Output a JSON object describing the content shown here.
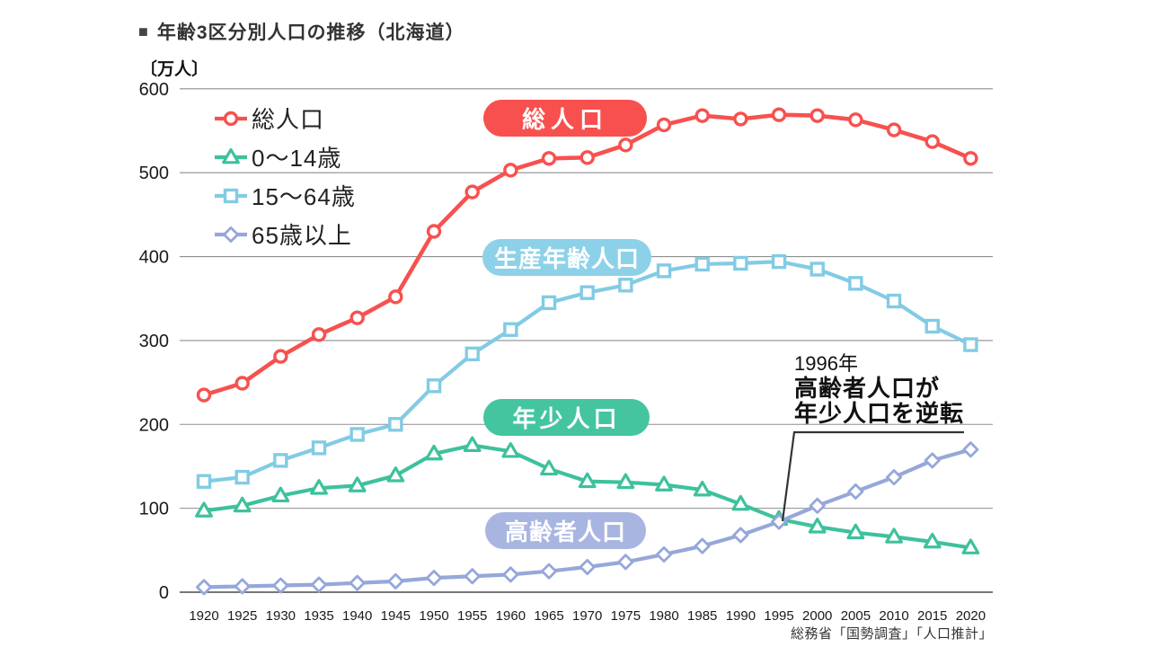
{
  "page": {
    "title_bullet": "■",
    "title": "年齢3区分別人口の推移（北海道）",
    "unit_label": "〔万人〕",
    "source": "総務省「国勢調査」「人口推計」"
  },
  "annotation": {
    "line1": "1996年",
    "line2": "高齢者人口が",
    "line3": "年少人口を逆転",
    "target_year": 1996,
    "line_color": "#333333"
  },
  "badges": [
    {
      "id": "total",
      "label": "総人口",
      "color": "#F8504E"
    },
    {
      "id": "working",
      "label": "生産年齢人口",
      "color": "#8DD1E8"
    },
    {
      "id": "young",
      "label": "年少人口",
      "color": "#44C5A0"
    },
    {
      "id": "elderly",
      "label": "高齢者人口",
      "color": "#A9B5E1"
    }
  ],
  "chart_data": {
    "type": "line",
    "title": "年齢3区分別人口の推移（北海道）",
    "xlabel": "",
    "ylabel": "万人",
    "ylim": [
      0,
      600
    ],
    "yticks": [
      0,
      100,
      200,
      300,
      400,
      500,
      600
    ],
    "grid": "horizontal",
    "legend_position": "top-left",
    "x": [
      1920,
      1925,
      1930,
      1935,
      1940,
      1945,
      1950,
      1955,
      1960,
      1965,
      1970,
      1975,
      1980,
      1985,
      1990,
      1995,
      2000,
      2005,
      2010,
      2015,
      2020
    ],
    "series": [
      {
        "name": "総人口",
        "marker": "circle",
        "color": "#F7514F",
        "values": [
          235,
          249,
          281,
          307,
          327,
          352,
          430,
          477,
          503,
          517,
          518,
          533,
          557,
          568,
          564,
          569,
          568,
          563,
          551,
          537,
          517
        ]
      },
      {
        "name": "0〜14歳",
        "marker": "triangle",
        "color": "#3EC19D",
        "values": [
          97,
          103,
          115,
          124,
          127,
          139,
          165,
          175,
          168,
          147,
          132,
          131,
          128,
          122,
          105,
          87,
          78,
          71,
          66,
          60,
          53
        ]
      },
      {
        "name": "15〜64歳",
        "marker": "square",
        "color": "#82CBE4",
        "values": [
          132,
          137,
          157,
          172,
          188,
          200,
          246,
          284,
          313,
          345,
          357,
          366,
          383,
          391,
          392,
          394,
          385,
          368,
          347,
          317,
          295
        ]
      },
      {
        "name": "65歳以上",
        "marker": "diamond",
        "color": "#96A7D9",
        "values": [
          6,
          7,
          8,
          9,
          11,
          13,
          17,
          19,
          21,
          25,
          30,
          36,
          45,
          55,
          68,
          84,
          103,
          120,
          137,
          157,
          170
        ]
      }
    ]
  }
}
